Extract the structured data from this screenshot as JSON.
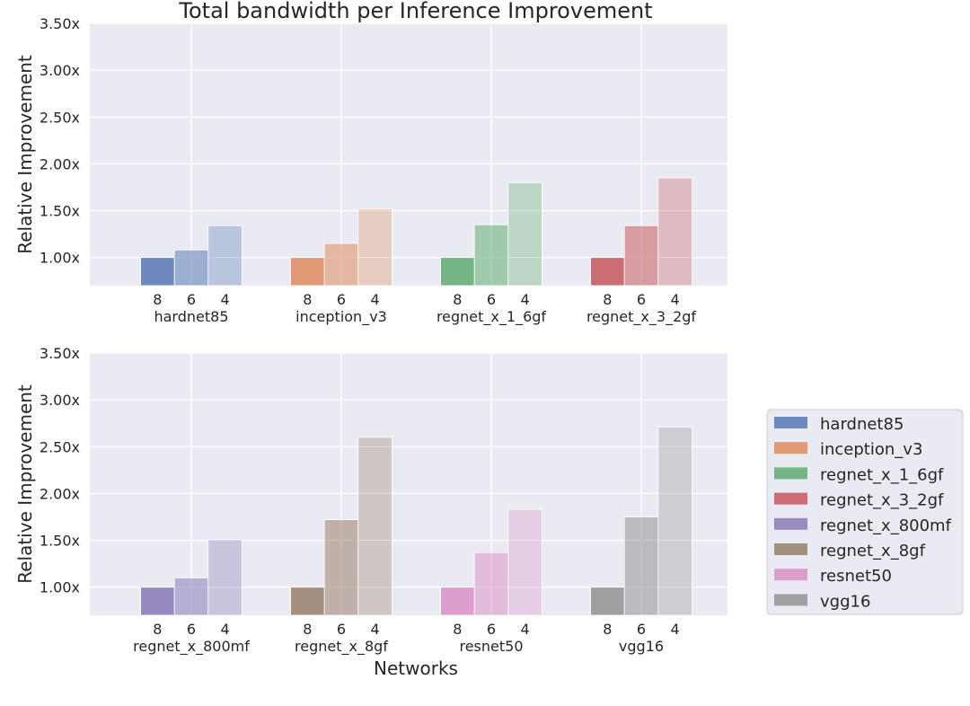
{
  "chart_data": {
    "type": "bar",
    "title": "Total bandwidth per Inference Improvement",
    "xlabel": "Networks",
    "ylabel": "Relative Improvement",
    "ylim": [
      0.7,
      3.5
    ],
    "yticks": [
      "1.00x",
      "1.50x",
      "2.00x",
      "2.50x",
      "3.00x",
      "3.50x"
    ],
    "ytick_values": [
      1.0,
      1.5,
      2.0,
      2.5,
      3.0,
      3.5
    ],
    "bit_labels": [
      "8",
      "6",
      "4"
    ],
    "opacities": [
      0.8,
      0.5,
      0.3
    ],
    "grid": true,
    "legend_position": "right",
    "networks": [
      {
        "name": "hardnet85",
        "color": "#4c72b0",
        "values": [
          1.0,
          1.08,
          1.34
        ]
      },
      {
        "name": "inception_v3",
        "color": "#dd8452",
        "values": [
          1.0,
          1.15,
          1.52
        ]
      },
      {
        "name": "regnet_x_1_6gf",
        "color": "#55a868",
        "values": [
          1.0,
          1.35,
          1.8
        ]
      },
      {
        "name": "regnet_x_3_2gf",
        "color": "#c44e52",
        "values": [
          1.0,
          1.34,
          1.85
        ]
      },
      {
        "name": "regnet_x_800mf",
        "color": "#8172b3",
        "values": [
          1.0,
          1.1,
          1.51
        ]
      },
      {
        "name": "regnet_x_8gf",
        "color": "#937860",
        "values": [
          1.0,
          1.72,
          2.6
        ]
      },
      {
        "name": "resnet50",
        "color": "#da8bc3",
        "values": [
          1.0,
          1.37,
          1.83
        ]
      },
      {
        "name": "vgg16",
        "color": "#8c8c8c",
        "values": [
          1.0,
          1.75,
          2.71
        ]
      }
    ],
    "panels": [
      {
        "networks": [
          "hardnet85",
          "inception_v3",
          "regnet_x_1_6gf",
          "regnet_x_3_2gf"
        ]
      },
      {
        "networks": [
          "regnet_x_800mf",
          "regnet_x_8gf",
          "resnet50",
          "vgg16"
        ]
      }
    ]
  }
}
